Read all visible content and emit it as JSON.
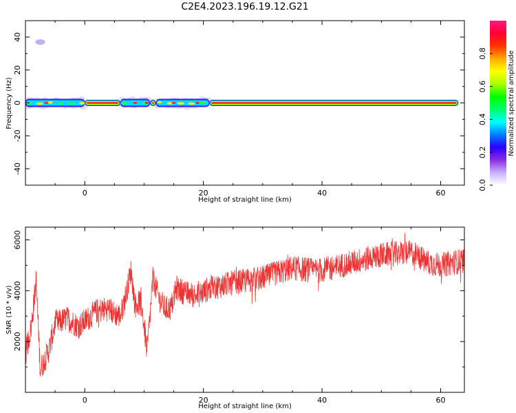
{
  "title": "C2E4.2023.196.19.12.G21",
  "chart_data": [
    {
      "type": "heatmap",
      "xlabel": "Height of straight line (km)",
      "ylabel": "Frequency (Hz)",
      "xlim": [
        -10,
        64
      ],
      "ylim": [
        -50,
        50
      ],
      "xticks": [
        0,
        20,
        40,
        60
      ],
      "yticks": [
        -40,
        -20,
        0,
        20,
        40
      ],
      "colorbar": {
        "label": "Normalized spectral amplitude",
        "ticks": [
          0.0,
          0.2,
          0.4,
          0.6,
          0.8
        ],
        "range": [
          0,
          1
        ],
        "colormap": [
          "#ffffff",
          "#c8b0ff",
          "#8a2be2",
          "#2a00ff",
          "#0080ff",
          "#00ffff",
          "#00ff66",
          "#00ff00",
          "#aaff00",
          "#ffff00",
          "#ffaa00",
          "#ff3300",
          "#ff0033",
          "#ff1a80"
        ]
      },
      "ridge": {
        "frequency": 0,
        "strong_segments": [
          [
            0,
            6
          ],
          [
            11,
            12
          ],
          [
            21,
            63
          ]
        ],
        "noisy_segments": [
          [
            -10,
            0
          ],
          [
            6,
            11
          ],
          [
            12,
            21
          ]
        ]
      },
      "spot": {
        "x": -7.5,
        "y": 37
      }
    },
    {
      "type": "line",
      "xlabel": "Height of straight line (km)",
      "ylabel": "SNR (10 * v/v)",
      "xlim": [
        -10,
        64
      ],
      "ylim": [
        0,
        6500
      ],
      "xticks": [
        0,
        20,
        40,
        60
      ],
      "yticks": [
        2000,
        4000,
        6000
      ],
      "color": "#ee3333",
      "trend": [
        [
          -10,
          1500
        ],
        [
          -9,
          2600
        ],
        [
          -8.2,
          4400
        ],
        [
          -7.5,
          900
        ],
        [
          -6,
          1700
        ],
        [
          -5,
          2700
        ],
        [
          -3,
          2900
        ],
        [
          -1,
          2600
        ],
        [
          0,
          2800
        ],
        [
          2,
          3200
        ],
        [
          4,
          3300
        ],
        [
          5,
          3100
        ],
        [
          6,
          3000
        ],
        [
          7,
          3900
        ],
        [
          7.8,
          4800
        ],
        [
          8.5,
          3400
        ],
        [
          9.5,
          3600
        ],
        [
          10.5,
          1600
        ],
        [
          11,
          3000
        ],
        [
          11.5,
          4500
        ],
        [
          12.5,
          3700
        ],
        [
          13.5,
          3300
        ],
        [
          14.5,
          3300
        ],
        [
          15.5,
          4100
        ],
        [
          17,
          3900
        ],
        [
          19,
          3800
        ],
        [
          21,
          4100
        ],
        [
          25,
          4300
        ],
        [
          30,
          4500
        ],
        [
          35,
          4900
        ],
        [
          38,
          4800
        ],
        [
          40,
          4800
        ],
        [
          45,
          5100
        ],
        [
          50,
          5400
        ],
        [
          55,
          5500
        ],
        [
          58,
          5100
        ],
        [
          60,
          5000
        ],
        [
          64,
          5200
        ]
      ],
      "noise_amplitude": 500
    }
  ]
}
